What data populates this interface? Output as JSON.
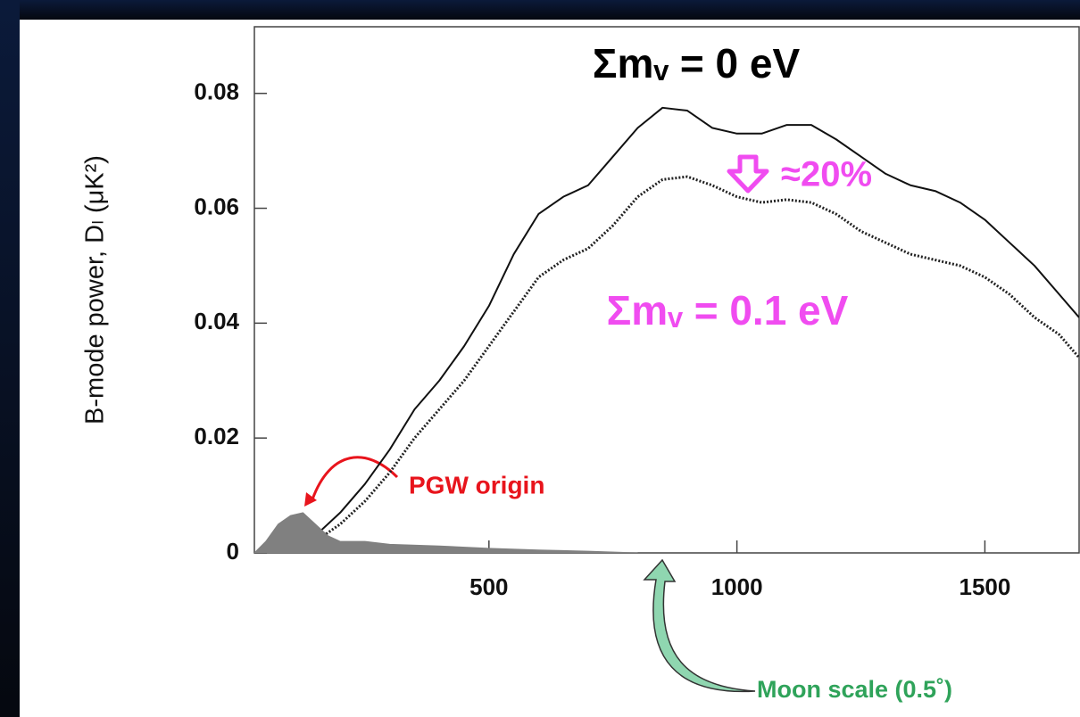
{
  "chart_data": {
    "type": "line",
    "ylabel": "B-mode power, Dₗ (μK²)",
    "xlim": [
      27,
      1690
    ],
    "ylim": [
      0,
      0.0916
    ],
    "xticks": [
      500,
      1000,
      1500
    ],
    "yticks": [
      0,
      0.02,
      0.04,
      0.06,
      0.08
    ],
    "series": [
      {
        "name": "Σmᵥ = 0 eV",
        "color": "#111111",
        "style": "solid",
        "x": [
          50,
          100,
          150,
          200,
          250,
          300,
          350,
          400,
          450,
          500,
          550,
          600,
          650,
          700,
          750,
          800,
          850,
          900,
          950,
          1000,
          1050,
          1100,
          1150,
          1200,
          1250,
          1300,
          1350,
          1400,
          1450,
          1500,
          1550,
          1600,
          1650,
          1690
        ],
        "values": [
          0,
          0.001,
          0.003,
          0.007,
          0.012,
          0.018,
          0.025,
          0.03,
          0.036,
          0.043,
          0.052,
          0.059,
          0.062,
          0.064,
          0.069,
          0.074,
          0.0775,
          0.077,
          0.074,
          0.073,
          0.073,
          0.0745,
          0.0745,
          0.072,
          0.069,
          0.066,
          0.064,
          0.063,
          0.061,
          0.058,
          0.054,
          0.05,
          0.045,
          0.041
        ]
      },
      {
        "name": "Σmᵥ = 0.1 eV",
        "color": "#222222",
        "style": "dotted",
        "x": [
          50,
          100,
          150,
          200,
          250,
          300,
          350,
          400,
          450,
          500,
          550,
          600,
          650,
          700,
          750,
          800,
          850,
          900,
          950,
          1000,
          1050,
          1100,
          1150,
          1200,
          1250,
          1300,
          1350,
          1400,
          1450,
          1500,
          1550,
          1600,
          1650,
          1690
        ],
        "values": [
          0,
          0.0005,
          0.002,
          0.005,
          0.009,
          0.014,
          0.02,
          0.025,
          0.03,
          0.036,
          0.042,
          0.048,
          0.051,
          0.053,
          0.057,
          0.062,
          0.065,
          0.0655,
          0.064,
          0.062,
          0.061,
          0.0615,
          0.061,
          0.059,
          0.056,
          0.054,
          0.052,
          0.051,
          0.05,
          0.048,
          0.045,
          0.041,
          0.038,
          0.034
        ]
      },
      {
        "name": "PGW origin",
        "color": "#808080",
        "style": "area",
        "x": [
          27,
          50,
          75,
          100,
          125,
          150,
          175,
          200,
          250,
          300,
          400,
          500,
          600,
          700,
          800
        ],
        "values": [
          0,
          0.002,
          0.005,
          0.0065,
          0.007,
          0.005,
          0.003,
          0.002,
          0.002,
          0.0015,
          0.0012,
          0.0008,
          0.0005,
          0.0003,
          0
        ]
      }
    ],
    "annotations": {
      "drop": "≈20%",
      "moon": "Moon scale (0.5˚)"
    }
  }
}
